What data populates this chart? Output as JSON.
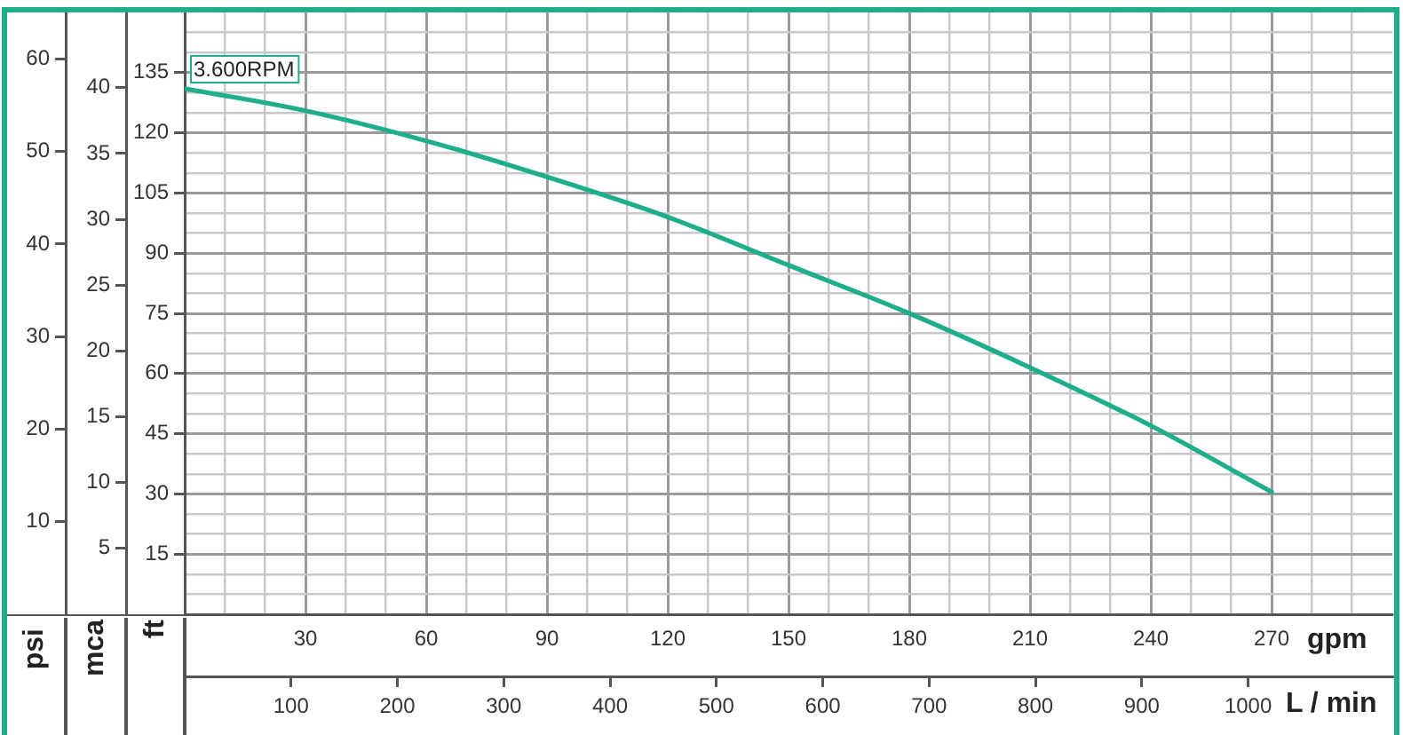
{
  "chart_data": {
    "type": "line",
    "x": [
      0,
      30,
      60,
      90,
      120,
      150,
      180,
      210,
      240,
      270
    ],
    "series": [
      {
        "name": "3.600RPM",
        "color": "#1fae8c",
        "values": [
          131,
          125.5,
          118,
          109,
          99,
          87,
          75,
          61.5,
          47,
          30.5
        ]
      }
    ],
    "xlabel": "gpm",
    "x2label": "L / min",
    "ylabel": "ft",
    "y2label": "mca",
    "y3label": "psi",
    "xlim": [
      0,
      300
    ],
    "xticks": [
      {
        "value": 10,
        "label": null
      },
      {
        "value": 20,
        "label": null
      },
      30,
      {
        "value": 40,
        "label": null
      },
      {
        "value": 50,
        "label": null
      },
      60,
      {
        "value": 70,
        "label": null
      },
      {
        "value": 80,
        "label": null
      },
      90,
      {
        "value": 100,
        "label": null
      },
      {
        "value": 110,
        "label": null
      },
      120,
      {
        "value": 130,
        "label": null
      },
      {
        "value": 140,
        "label": null
      },
      150,
      {
        "value": 160,
        "label": null
      },
      {
        "value": 170,
        "label": null
      },
      180,
      {
        "value": 190,
        "label": null
      },
      {
        "value": 200,
        "label": null
      },
      210,
      {
        "value": 220,
        "label": null
      },
      {
        "value": 230,
        "label": null
      },
      240,
      {
        "value": 250,
        "label": null
      },
      {
        "value": 260,
        "label": null
      },
      270,
      {
        "value": 280,
        "label": null
      },
      {
        "value": 290,
        "label": null
      }
    ],
    "x2lim": [
      0,
      1135.6
    ],
    "x2ticks": [
      100,
      200,
      300,
      400,
      500,
      600,
      700,
      800,
      900,
      1000
    ],
    "ylim": [
      0,
      150
    ],
    "yticks": [
      {
        "value": 5,
        "label": null
      },
      {
        "value": 10,
        "label": null
      },
      15,
      {
        "value": 20,
        "label": null
      },
      {
        "value": 25,
        "label": null
      },
      30,
      {
        "value": 35,
        "label": null
      },
      {
        "value": 40,
        "label": null
      },
      45,
      {
        "value": 50,
        "label": null
      },
      {
        "value": 55,
        "label": null
      },
      60,
      {
        "value": 65,
        "label": null
      },
      {
        "value": 70,
        "label": null
      },
      75,
      {
        "value": 80,
        "label": null
      },
      {
        "value": 85,
        "label": null
      },
      90,
      {
        "value": 95,
        "label": null
      },
      {
        "value": 100,
        "label": null
      },
      105,
      {
        "value": 110,
        "label": null
      },
      {
        "value": 115,
        "label": null
      },
      120,
      {
        "value": 125,
        "label": null
      },
      {
        "value": 130,
        "label": null
      },
      135,
      {
        "value": 140,
        "label": null
      },
      {
        "value": 145,
        "label": null
      }
    ],
    "y2lim": [
      0,
      45.72
    ],
    "y2ticks": [
      5,
      10,
      15,
      20,
      25,
      30,
      35,
      40
    ],
    "y3lim": [
      0,
      65.03
    ],
    "y3ticks": [
      10,
      20,
      30,
      40,
      50,
      60
    ],
    "grid": true,
    "legend": false,
    "marker": "none"
  }
}
